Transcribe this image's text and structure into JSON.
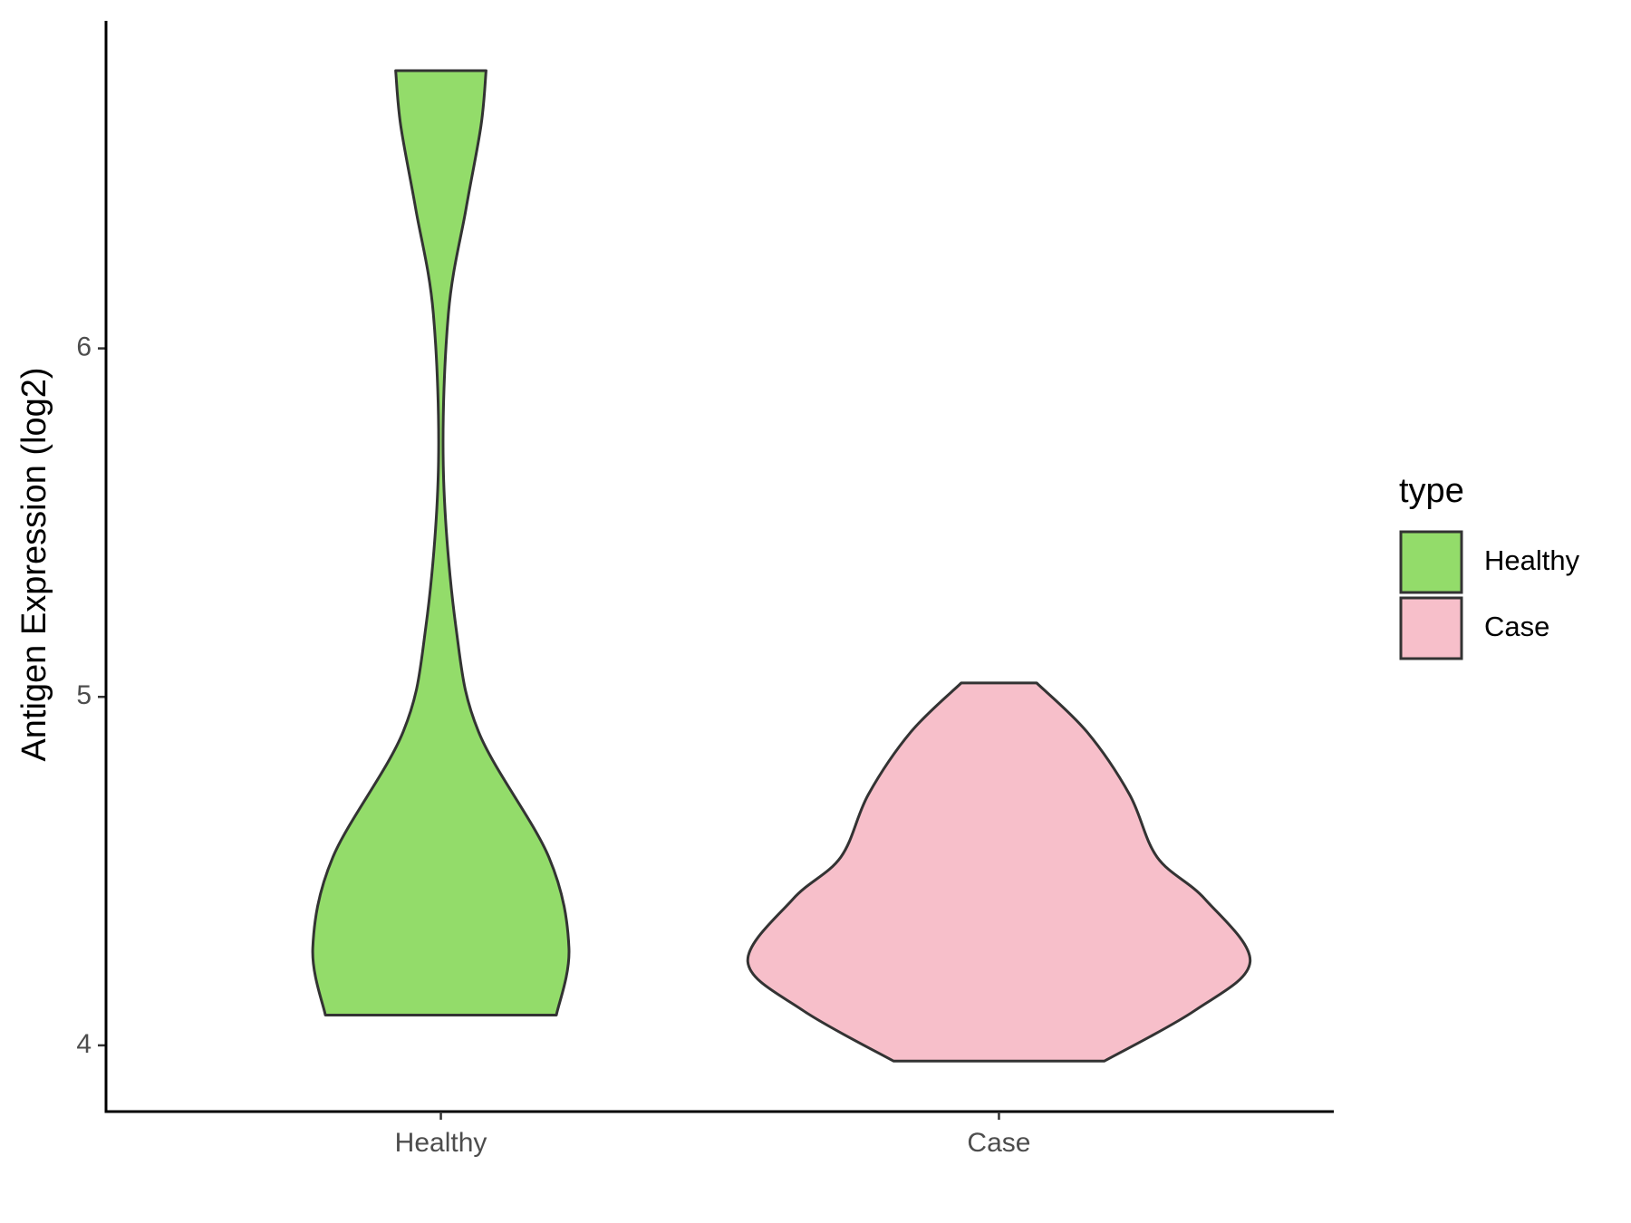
{
  "chart_data": {
    "type": "violin",
    "y_label": "Antigen Expression (log2)",
    "categories": [
      "Healthy",
      "Case"
    ],
    "legend_title": "type",
    "series": [
      {
        "name": "Healthy",
        "color": "#93dc6a",
        "y": [
          4.087,
          4.28,
          4.54,
          4.9,
          5.2,
          5.65,
          6.1,
          6.4,
          6.64,
          6.797
        ],
        "density": [
          0.46,
          0.51,
          0.43,
          0.15,
          0.06,
          0.01,
          0.03,
          0.1,
          0.16,
          0.18
        ]
      },
      {
        "name": "Case",
        "color": "#f7bfca",
        "y": [
          3.955,
          4.1,
          4.24,
          4.42,
          4.54,
          4.72,
          4.9,
          5.04
        ],
        "density": [
          0.42,
          0.78,
          1.0,
          0.82,
          0.63,
          0.52,
          0.35,
          0.15
        ]
      }
    ],
    "ylim": [
      3.81,
      6.94
    ],
    "yticks": [
      4,
      5,
      6
    ]
  }
}
